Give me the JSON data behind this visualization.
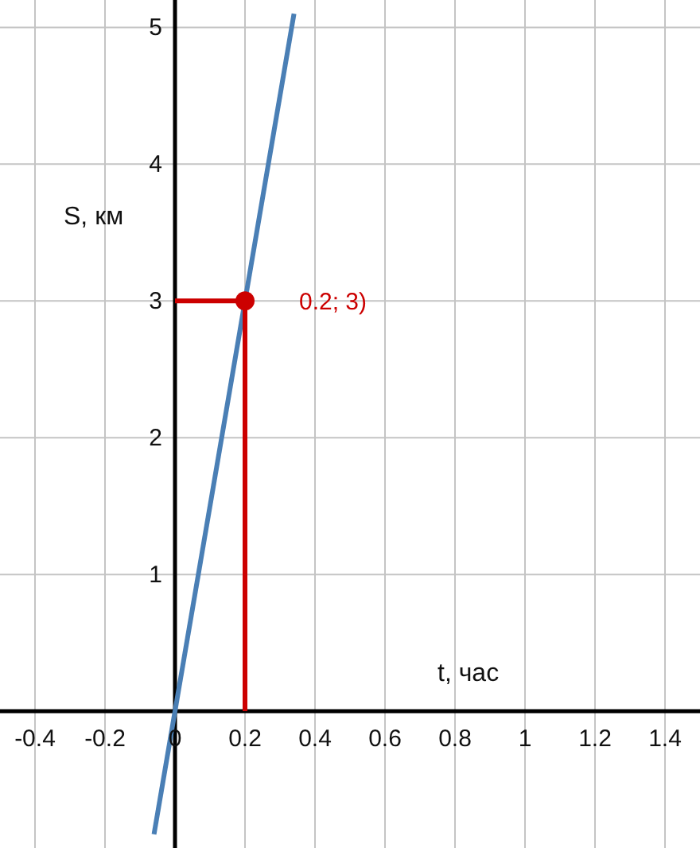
{
  "chart_data": {
    "type": "line",
    "xlabel": "t, час",
    "ylabel": "S, км",
    "xlim": [
      -0.5,
      1.5
    ],
    "ylim": [
      -1,
      5.2
    ],
    "xticks": [
      -0.4,
      -0.2,
      0,
      0.2,
      0.4,
      0.6,
      0.8,
      1,
      1.2,
      1.4
    ],
    "yticks": [
      1,
      2,
      3,
      4,
      5
    ],
    "grid": true,
    "marker": "none",
    "line_style": "solid",
    "series": [
      {
        "color": "#4a7fb5",
        "x": [
          -0.06,
          0.34
        ],
        "values": [
          -0.9,
          5.1
        ]
      },
      {
        "color": "#cc0000",
        "x": [
          0,
          0.2,
          0.2
        ],
        "values": [
          3,
          3,
          0
        ]
      },
      {
        "type": "scatter",
        "color": "#cc0000",
        "marker": "circle",
        "x": [
          0.2
        ],
        "values": [
          3
        ]
      }
    ],
    "annotations": [
      {
        "text": "0.2; 3)",
        "x": 0.2,
        "y": 3
      }
    ]
  }
}
